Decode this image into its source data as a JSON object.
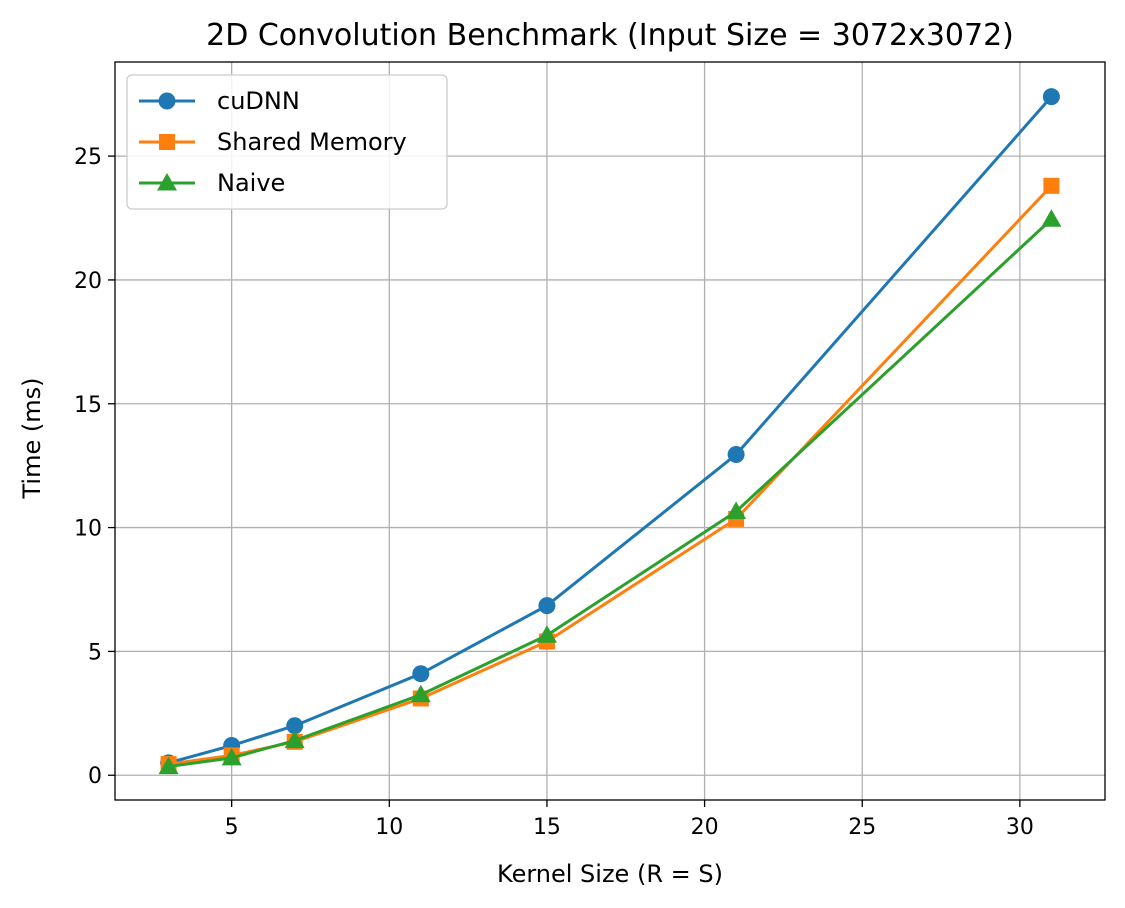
{
  "chart_data": {
    "type": "line",
    "title": "2D Convolution Benchmark (Input Size = 3072x3072)",
    "xlabel": "Kernel Size (R = S)",
    "ylabel": "Time (ms)",
    "x": [
      3,
      5,
      7,
      11,
      15,
      21,
      31
    ],
    "xlim": [
      1.3,
      32.7
    ],
    "ylim": [
      -1.0,
      28.8
    ],
    "xticks": [
      5,
      10,
      15,
      20,
      25,
      30
    ],
    "yticks": [
      0,
      5,
      10,
      15,
      20,
      25
    ],
    "grid": true,
    "legend_position": "upper-left",
    "series": [
      {
        "name": "cuDNN",
        "color": "#1f77b4",
        "marker": "circle",
        "values": [
          0.5,
          1.2,
          2.0,
          4.1,
          6.85,
          12.95,
          27.4
        ]
      },
      {
        "name": "Shared Memory",
        "color": "#ff7f0e",
        "marker": "square",
        "values": [
          0.45,
          0.8,
          1.35,
          3.1,
          5.4,
          10.35,
          23.8
        ]
      },
      {
        "name": "Naive",
        "color": "#2ca02c",
        "marker": "triangle",
        "values": [
          0.35,
          0.7,
          1.4,
          3.25,
          5.65,
          10.65,
          22.45
        ]
      }
    ]
  }
}
